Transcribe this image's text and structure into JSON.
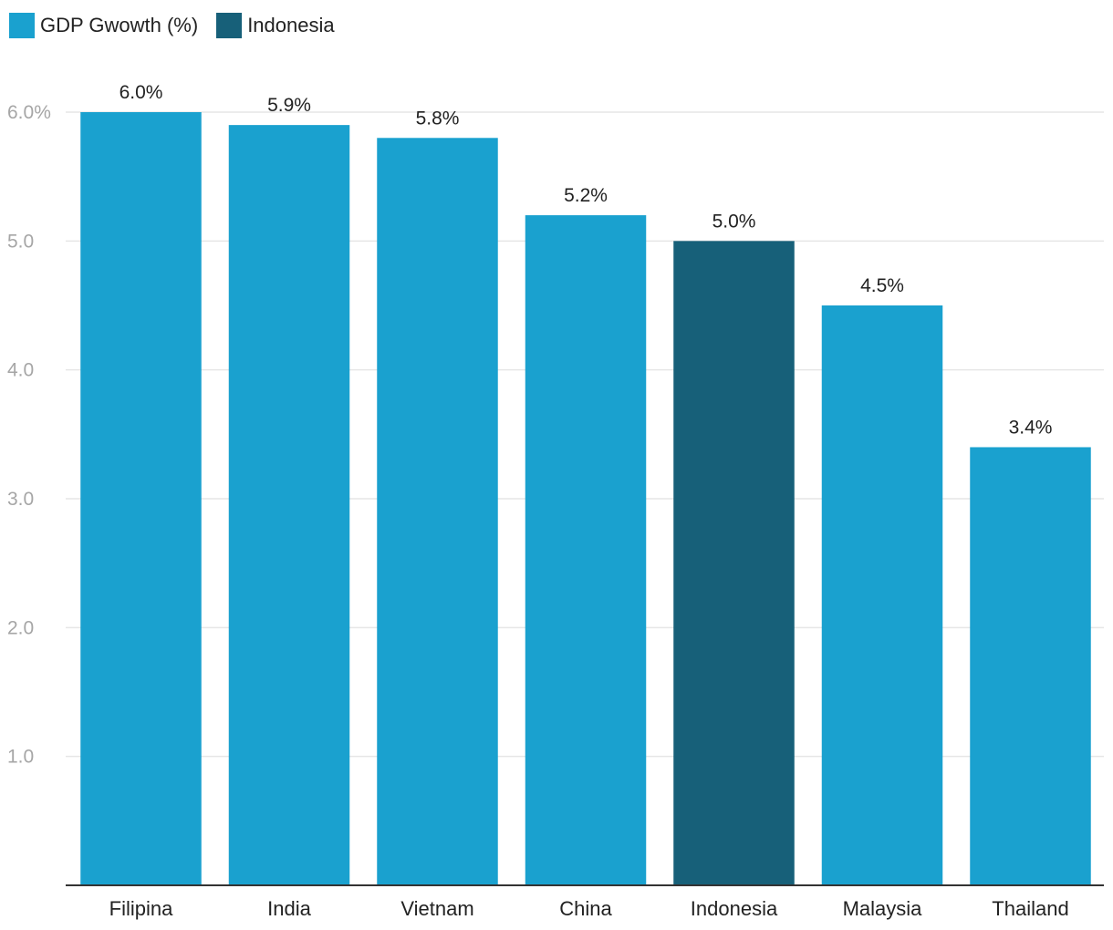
{
  "legend": [
    {
      "label": "GDP Gwowth (%)",
      "color": "#1aa1cf"
    },
    {
      "label": "Indonesia",
      "color": "#176079"
    }
  ],
  "chart_data": {
    "type": "bar",
    "categories": [
      "Filipina",
      "India",
      "Vietnam",
      "China",
      "Indonesia",
      "Malaysia",
      "Thailand"
    ],
    "series": [
      {
        "name": "GDP Gwowth (%)",
        "values": [
          6.0,
          5.9,
          5.8,
          5.2,
          5.0,
          4.5,
          3.4
        ]
      }
    ],
    "data_labels": [
      "6.0%",
      "5.9%",
      "5.8%",
      "5.2%",
      "5.0%",
      "4.5%",
      "3.4%"
    ],
    "highlight": {
      "category": "Indonesia",
      "legend_label": "Indonesia"
    },
    "colors": {
      "default": "#1aa1cf",
      "highlight": "#176079",
      "grid": "#e6e6e6",
      "axis": "#333333"
    },
    "ylim": [
      0,
      6
    ],
    "yticks": [
      1,
      2,
      3,
      4,
      5,
      6
    ],
    "ytick_labels": [
      "1.0",
      "2.0",
      "3.0",
      "4.0",
      "5.0",
      "6.0%"
    ],
    "grid": true,
    "legend_position": "top-left",
    "title": "",
    "xlabel": "",
    "ylabel": ""
  }
}
